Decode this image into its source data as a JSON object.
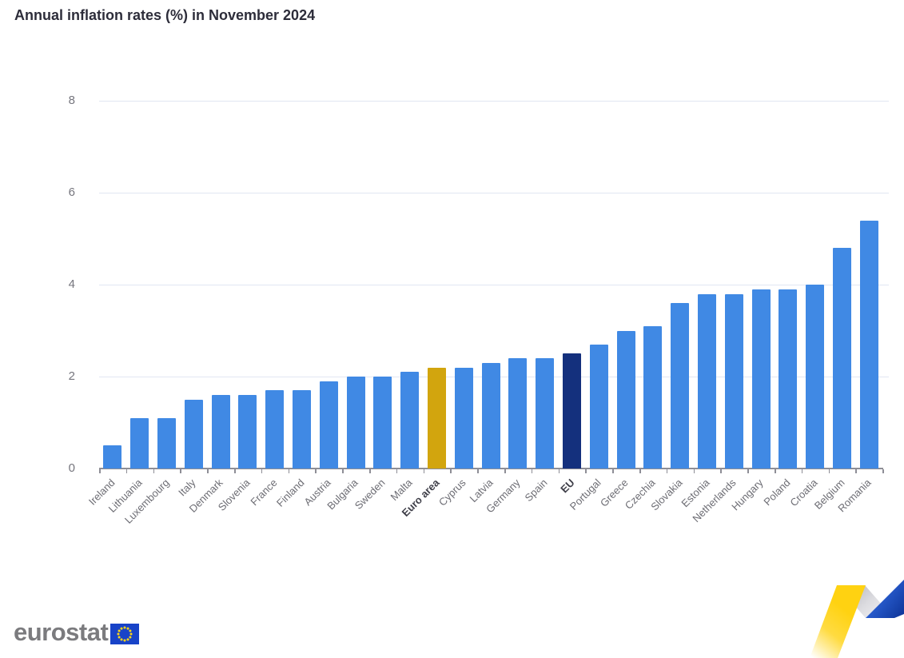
{
  "title": "Annual inflation rates (%) in November 2024",
  "chart_data": {
    "type": "bar",
    "title": "Annual inflation rates (%) in November 2024",
    "categories": [
      "Ireland",
      "Lithuania",
      "Luxembourg",
      "Italy",
      "Denmark",
      "Slovenia",
      "France",
      "Finland",
      "Austria",
      "Bulgaria",
      "Sweden",
      "Malta",
      "Euro area",
      "Cyprus",
      "Latvia",
      "Germany",
      "Spain",
      "EU",
      "Portugal",
      "Greece",
      "Czechia",
      "Slovakia",
      "Estonia",
      "Netherlands",
      "Hungary",
      "Poland",
      "Croatia",
      "Belgium",
      "Romania"
    ],
    "values": [
      0.5,
      1.1,
      1.1,
      1.5,
      1.6,
      1.6,
      1.7,
      1.7,
      1.9,
      2.0,
      2.0,
      2.1,
      2.2,
      2.2,
      2.3,
      2.4,
      2.4,
      2.5,
      2.7,
      3.0,
      3.1,
      3.6,
      3.8,
      3.8,
      3.9,
      3.9,
      4.0,
      4.8,
      5.4
    ],
    "bold_categories": [
      "Euro area",
      "EU"
    ],
    "xlabel": "",
    "ylabel": "",
    "ylim": [
      0,
      8
    ],
    "yticks": [
      0,
      2,
      4,
      6,
      8
    ],
    "gridline_values": [
      2,
      4,
      6,
      8
    ],
    "grid": "horizontal",
    "legend": "none",
    "colors": {
      "bar_default": "#4089E4",
      "bar_euro_area": "#D2A50E",
      "bar_eu": "#14307D",
      "gridline": "#E1E6F2",
      "axis": "#8E8E96",
      "tick_label": "#75757D",
      "category_label": "#6D6D74",
      "category_label_bold": "#3E3E48",
      "title": "#2D2D3A"
    }
  },
  "footer": {
    "logo_text": "eurostat",
    "flag_icon": "eu-flag-icon",
    "ribbon_icon": "zigzag-ribbon-decoration",
    "ribbon_colors": {
      "yellow": "#FFD211",
      "gray": "#C9C9CE",
      "blue": "#1D43B8"
    }
  }
}
